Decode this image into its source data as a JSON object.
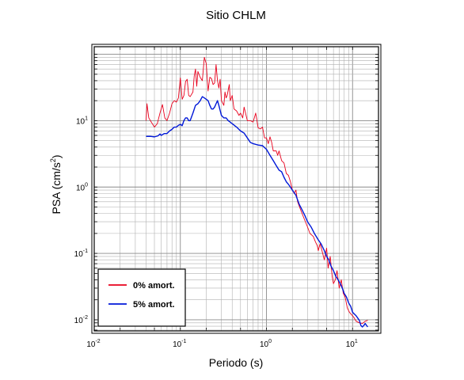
{
  "chart_data": {
    "type": "line",
    "title": "Sitio CHLM",
    "xlabel": "Periodo (s)",
    "ylabel_main": "PSA (cm/s",
    "ylabel_sup": "2",
    "ylabel_close": ")",
    "x_scale": "log",
    "y_scale": "log",
    "xlim": [
      0.01,
      20
    ],
    "ylim": [
      0.0068,
      130
    ],
    "grid": true,
    "legend_position": "bottom-left",
    "x_ticks": [
      {
        "value": 0.01,
        "base": "10",
        "exp": "-2"
      },
      {
        "value": 0.1,
        "base": "10",
        "exp": "-1"
      },
      {
        "value": 1,
        "base": "10",
        "exp": "0"
      },
      {
        "value": 10,
        "base": "10",
        "exp": "1"
      }
    ],
    "y_ticks": [
      {
        "value": 0.01,
        "base": "10",
        "exp": "-2"
      },
      {
        "value": 0.1,
        "base": "10",
        "exp": "-1"
      },
      {
        "value": 1,
        "base": "10",
        "exp": "0"
      },
      {
        "value": 10,
        "base": "10",
        "exp": "1"
      }
    ],
    "series": [
      {
        "name": "0% amort.",
        "color": "#e8001c",
        "points": [
          [
            0.04,
            10
          ],
          [
            0.041,
            18
          ],
          [
            0.043,
            11
          ],
          [
            0.046,
            9.5
          ],
          [
            0.05,
            8
          ],
          [
            0.054,
            9
          ],
          [
            0.058,
            13
          ],
          [
            0.062,
            17.5
          ],
          [
            0.066,
            11
          ],
          [
            0.07,
            10
          ],
          [
            0.075,
            13
          ],
          [
            0.08,
            18
          ],
          [
            0.085,
            20
          ],
          [
            0.09,
            19
          ],
          [
            0.095,
            22
          ],
          [
            0.1,
            44
          ],
          [
            0.105,
            21
          ],
          [
            0.11,
            24
          ],
          [
            0.115,
            39
          ],
          [
            0.12,
            42
          ],
          [
            0.125,
            24
          ],
          [
            0.13,
            23
          ],
          [
            0.14,
            27
          ],
          [
            0.145,
            47
          ],
          [
            0.15,
            60
          ],
          [
            0.155,
            33
          ],
          [
            0.16,
            55
          ],
          [
            0.17,
            45
          ],
          [
            0.18,
            40
          ],
          [
            0.19,
            90
          ],
          [
            0.2,
            72
          ],
          [
            0.21,
            28
          ],
          [
            0.22,
            45
          ],
          [
            0.23,
            43
          ],
          [
            0.24,
            35
          ],
          [
            0.25,
            37
          ],
          [
            0.26,
            70
          ],
          [
            0.27,
            40
          ],
          [
            0.28,
            31
          ],
          [
            0.29,
            42
          ],
          [
            0.3,
            20
          ],
          [
            0.32,
            17
          ],
          [
            0.33,
            27
          ],
          [
            0.34,
            22
          ],
          [
            0.35,
            24
          ],
          [
            0.37,
            35
          ],
          [
            0.38,
            20
          ],
          [
            0.4,
            24
          ],
          [
            0.42,
            15
          ],
          [
            0.45,
            14
          ],
          [
            0.48,
            12
          ],
          [
            0.5,
            13
          ],
          [
            0.53,
            11
          ],
          [
            0.55,
            16
          ],
          [
            0.6,
            10
          ],
          [
            0.65,
            10
          ],
          [
            0.7,
            9.5
          ],
          [
            0.75,
            13
          ],
          [
            0.8,
            7.8
          ],
          [
            0.85,
            7.5
          ],
          [
            0.9,
            8
          ],
          [
            0.95,
            5.5
          ],
          [
            1.0,
            5.5
          ],
          [
            1.05,
            4.5
          ],
          [
            1.1,
            5.7
          ],
          [
            1.15,
            4.7
          ],
          [
            1.2,
            3.5
          ],
          [
            1.3,
            3.5
          ],
          [
            1.35,
            3.0
          ],
          [
            1.4,
            3.5
          ],
          [
            1.5,
            2.5
          ],
          [
            1.6,
            2.3
          ],
          [
            1.7,
            1.6
          ],
          [
            1.8,
            1.5
          ],
          [
            1.9,
            1.2
          ],
          [
            2.0,
            0.9
          ],
          [
            2.1,
            0.8
          ],
          [
            2.2,
            0.9
          ],
          [
            2.3,
            0.6
          ],
          [
            2.5,
            0.45
          ],
          [
            2.7,
            0.35
          ],
          [
            3.0,
            0.25
          ],
          [
            3.2,
            0.2
          ],
          [
            3.5,
            0.18
          ],
          [
            3.7,
            0.15
          ],
          [
            3.9,
            0.13
          ],
          [
            4.0,
            0.11
          ],
          [
            4.2,
            0.14
          ],
          [
            4.5,
            0.1
          ],
          [
            4.7,
            0.08
          ],
          [
            5.0,
            0.12
          ],
          [
            5.2,
            0.06
          ],
          [
            5.5,
            0.09
          ],
          [
            5.8,
            0.045
          ],
          [
            6.0,
            0.035
          ],
          [
            6.3,
            0.04
          ],
          [
            6.6,
            0.055
          ],
          [
            7.0,
            0.03
          ],
          [
            7.4,
            0.04
          ],
          [
            7.8,
            0.025
          ],
          [
            8.2,
            0.022
          ],
          [
            8.7,
            0.015
          ],
          [
            9.2,
            0.013
          ],
          [
            9.7,
            0.012
          ],
          [
            10.3,
            0.011
          ],
          [
            11,
            0.0095
          ],
          [
            12,
            0.009
          ],
          [
            13,
            0.0088
          ],
          [
            14,
            0.0095
          ],
          [
            15,
            0.0098
          ]
        ]
      },
      {
        "name": "5% amort.",
        "color": "#0018d8",
        "points": [
          [
            0.04,
            5.8
          ],
          [
            0.045,
            5.8
          ],
          [
            0.05,
            5.7
          ],
          [
            0.055,
            5.9
          ],
          [
            0.058,
            6.3
          ],
          [
            0.06,
            6.0
          ],
          [
            0.065,
            6.4
          ],
          [
            0.07,
            6.4
          ],
          [
            0.075,
            7.0
          ],
          [
            0.08,
            7.4
          ],
          [
            0.085,
            8.0
          ],
          [
            0.09,
            8.0
          ],
          [
            0.095,
            8.5
          ],
          [
            0.1,
            8.8
          ],
          [
            0.105,
            8.4
          ],
          [
            0.11,
            10.0
          ],
          [
            0.115,
            11
          ],
          [
            0.12,
            11
          ],
          [
            0.125,
            10
          ],
          [
            0.13,
            10
          ],
          [
            0.14,
            13
          ],
          [
            0.15,
            17
          ],
          [
            0.16,
            18
          ],
          [
            0.17,
            20
          ],
          [
            0.18,
            23
          ],
          [
            0.19,
            22
          ],
          [
            0.2,
            21
          ],
          [
            0.21,
            20
          ],
          [
            0.22,
            17
          ],
          [
            0.23,
            15
          ],
          [
            0.24,
            15
          ],
          [
            0.25,
            16
          ],
          [
            0.26,
            18
          ],
          [
            0.27,
            20
          ],
          [
            0.28,
            17
          ],
          [
            0.3,
            12
          ],
          [
            0.32,
            11
          ],
          [
            0.34,
            11
          ],
          [
            0.36,
            10
          ],
          [
            0.38,
            9.5
          ],
          [
            0.4,
            9
          ],
          [
            0.45,
            8
          ],
          [
            0.5,
            7
          ],
          [
            0.55,
            6.5
          ],
          [
            0.6,
            5.5
          ],
          [
            0.65,
            4.7
          ],
          [
            0.7,
            4.5
          ],
          [
            0.8,
            4.3
          ],
          [
            0.9,
            4.2
          ],
          [
            1.0,
            3.7
          ],
          [
            1.1,
            3.0
          ],
          [
            1.2,
            2.5
          ],
          [
            1.3,
            2.1
          ],
          [
            1.4,
            1.8
          ],
          [
            1.5,
            1.7
          ],
          [
            1.6,
            1.4
          ],
          [
            1.7,
            1.2
          ],
          [
            1.8,
            1.1
          ],
          [
            2.0,
            0.9
          ],
          [
            2.2,
            0.75
          ],
          [
            2.4,
            0.55
          ],
          [
            2.6,
            0.45
          ],
          [
            2.8,
            0.37
          ],
          [
            3.0,
            0.3
          ],
          [
            3.3,
            0.25
          ],
          [
            3.6,
            0.2
          ],
          [
            4.0,
            0.16
          ],
          [
            4.3,
            0.14
          ],
          [
            4.7,
            0.11
          ],
          [
            5.0,
            0.09
          ],
          [
            5.3,
            0.08
          ],
          [
            5.6,
            0.065
          ],
          [
            6.0,
            0.055
          ],
          [
            6.4,
            0.045
          ],
          [
            6.8,
            0.04
          ],
          [
            7.2,
            0.035
          ],
          [
            7.6,
            0.03
          ],
          [
            8.0,
            0.025
          ],
          [
            8.5,
            0.022
          ],
          [
            9.0,
            0.018
          ],
          [
            9.5,
            0.016
          ],
          [
            10,
            0.013
          ],
          [
            11,
            0.0115
          ],
          [
            12,
            0.0098
          ],
          [
            12.5,
            0.0082
          ],
          [
            13,
            0.0078
          ],
          [
            13.5,
            0.0082
          ],
          [
            14,
            0.0088
          ],
          [
            15,
            0.0078
          ]
        ]
      }
    ]
  }
}
